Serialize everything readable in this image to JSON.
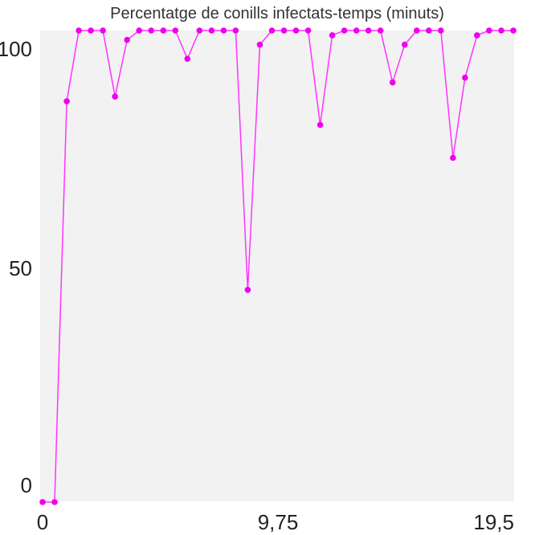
{
  "chart_data": {
    "type": "line",
    "title": "Percentatge de conills infectats-temps (minuts)",
    "xlabel": "",
    "ylabel": "",
    "xlim": [
      0,
      19.5
    ],
    "ylim": [
      0,
      100
    ],
    "x_ticks": [
      {
        "value": 0,
        "label": "0"
      },
      {
        "value": 9.75,
        "label": "9,75"
      },
      {
        "value": 19.5,
        "label": "19,5"
      }
    ],
    "y_ticks": [
      {
        "value": 0,
        "label": "0"
      },
      {
        "value": 50,
        "label": "50"
      },
      {
        "value": 100,
        "label": "100"
      }
    ],
    "grid": false,
    "colors": {
      "series": "#ff33ff",
      "marker": "#ee00ee",
      "plot_bg": "#f2f2f2"
    },
    "series": [
      {
        "x": [
          0,
          0.5,
          1,
          1.5,
          2,
          2.5,
          3,
          3.5,
          4,
          4.5,
          5,
          5.5,
          6,
          6.5,
          7,
          7.5,
          8,
          8.5,
          9,
          9.5,
          10,
          10.5,
          11,
          11.5,
          12,
          12.5,
          13,
          13.5,
          14,
          14.5,
          15,
          15.5,
          16,
          16.5,
          17,
          17.5,
          18,
          18.5,
          19,
          19.5
        ],
        "values": [
          0,
          0,
          85,
          100,
          100,
          100,
          86,
          98,
          100,
          100,
          100,
          100,
          94,
          100,
          100,
          100,
          100,
          45,
          97,
          100,
          100,
          100,
          100,
          80,
          99,
          100,
          100,
          100,
          100,
          89,
          97,
          100,
          100,
          100,
          73,
          90,
          99,
          100,
          100,
          100
        ]
      }
    ]
  }
}
